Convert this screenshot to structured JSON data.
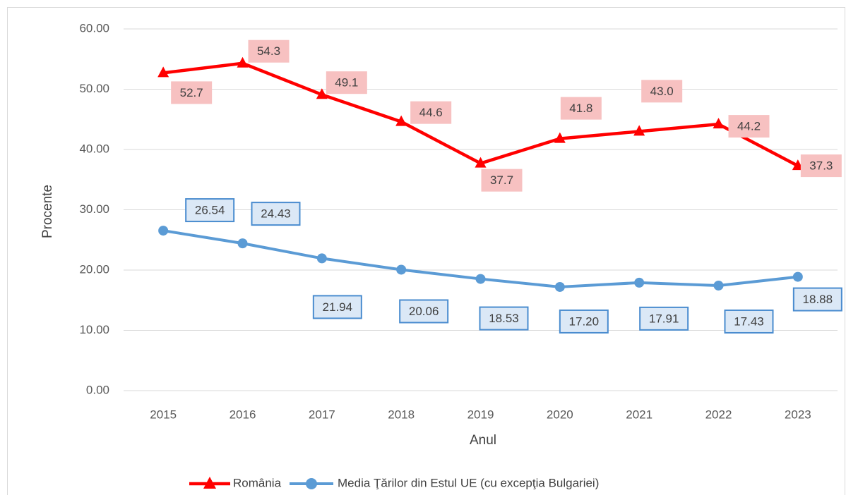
{
  "chart_data": {
    "type": "line",
    "x_label": "Anul",
    "y_label": "Procente",
    "categories": [
      "2015",
      "2016",
      "2017",
      "2018",
      "2019",
      "2020",
      "2021",
      "2022",
      "2023"
    ],
    "series": [
      {
        "name": "România",
        "color": "#ff0000",
        "marker": "triangle",
        "values": [
          52.7,
          54.3,
          49.1,
          44.6,
          37.7,
          41.8,
          43.0,
          44.2,
          37.3
        ],
        "value_labels": [
          "52.7",
          "54.3",
          "49.1",
          "44.6",
          "37.7",
          "41.8",
          "43.0",
          "44.2",
          "37.3"
        ]
      },
      {
        "name": "Media Ţărilor din Estul UE (cu excepţia Bulgariei)",
        "color": "#5b9bd5",
        "marker": "circle",
        "values": [
          26.54,
          24.43,
          21.94,
          20.06,
          18.53,
          17.2,
          17.91,
          17.43,
          18.88
        ],
        "value_labels": [
          "26.54",
          "24.43",
          "21.94",
          "20.06",
          "18.53",
          "17.20",
          "17.91",
          "17.43",
          "18.88"
        ]
      }
    ],
    "ylim": [
      0,
      60
    ],
    "yticks": [
      {
        "value": 0,
        "label": "0.00"
      },
      {
        "value": 10,
        "label": "10.00"
      },
      {
        "value": 20,
        "label": "20.00"
      },
      {
        "value": 30,
        "label": "30.00"
      },
      {
        "value": 40,
        "label": "40.00"
      },
      {
        "value": 50,
        "label": "50.00"
      },
      {
        "value": 60,
        "label": "60.00"
      }
    ],
    "grid": true,
    "legend": "bottom"
  }
}
